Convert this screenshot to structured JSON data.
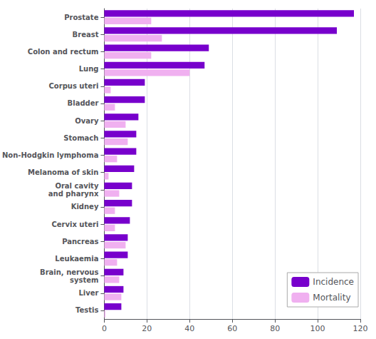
{
  "chart_data": {
    "type": "bar",
    "orientation": "horizontal",
    "categories": [
      "Prostate",
      "Breast",
      "Colon and rectum",
      "Lung",
      "Corpus uteri",
      "Bladder",
      "Ovary",
      "Stomach",
      "Non-Hodgkin lymphoma",
      "Melanoma of skin",
      "Oral cavity\nand pharynx",
      "Kidney",
      "Cervix uteri",
      "Pancreas",
      "Leukaemia",
      "Brain, nervous\nsystem",
      "Liver",
      "Testis"
    ],
    "series": [
      {
        "name": "Incidence",
        "color": "#7700cc",
        "values": [
          117,
          109,
          49,
          47,
          19,
          19,
          16,
          15,
          15,
          14,
          13,
          13,
          12,
          11,
          11,
          9,
          9,
          8
        ]
      },
      {
        "name": "Mortality",
        "color": "#f0b0f0",
        "values": [
          22,
          27,
          22,
          40,
          3,
          5,
          10,
          11,
          6,
          2,
          7,
          5,
          5,
          10,
          6,
          7,
          8,
          0.5
        ]
      }
    ],
    "xlim": [
      0,
      120
    ],
    "xticks": [
      0,
      20,
      40,
      60,
      80,
      100,
      120
    ],
    "grid": true,
    "legend": "lower right"
  }
}
